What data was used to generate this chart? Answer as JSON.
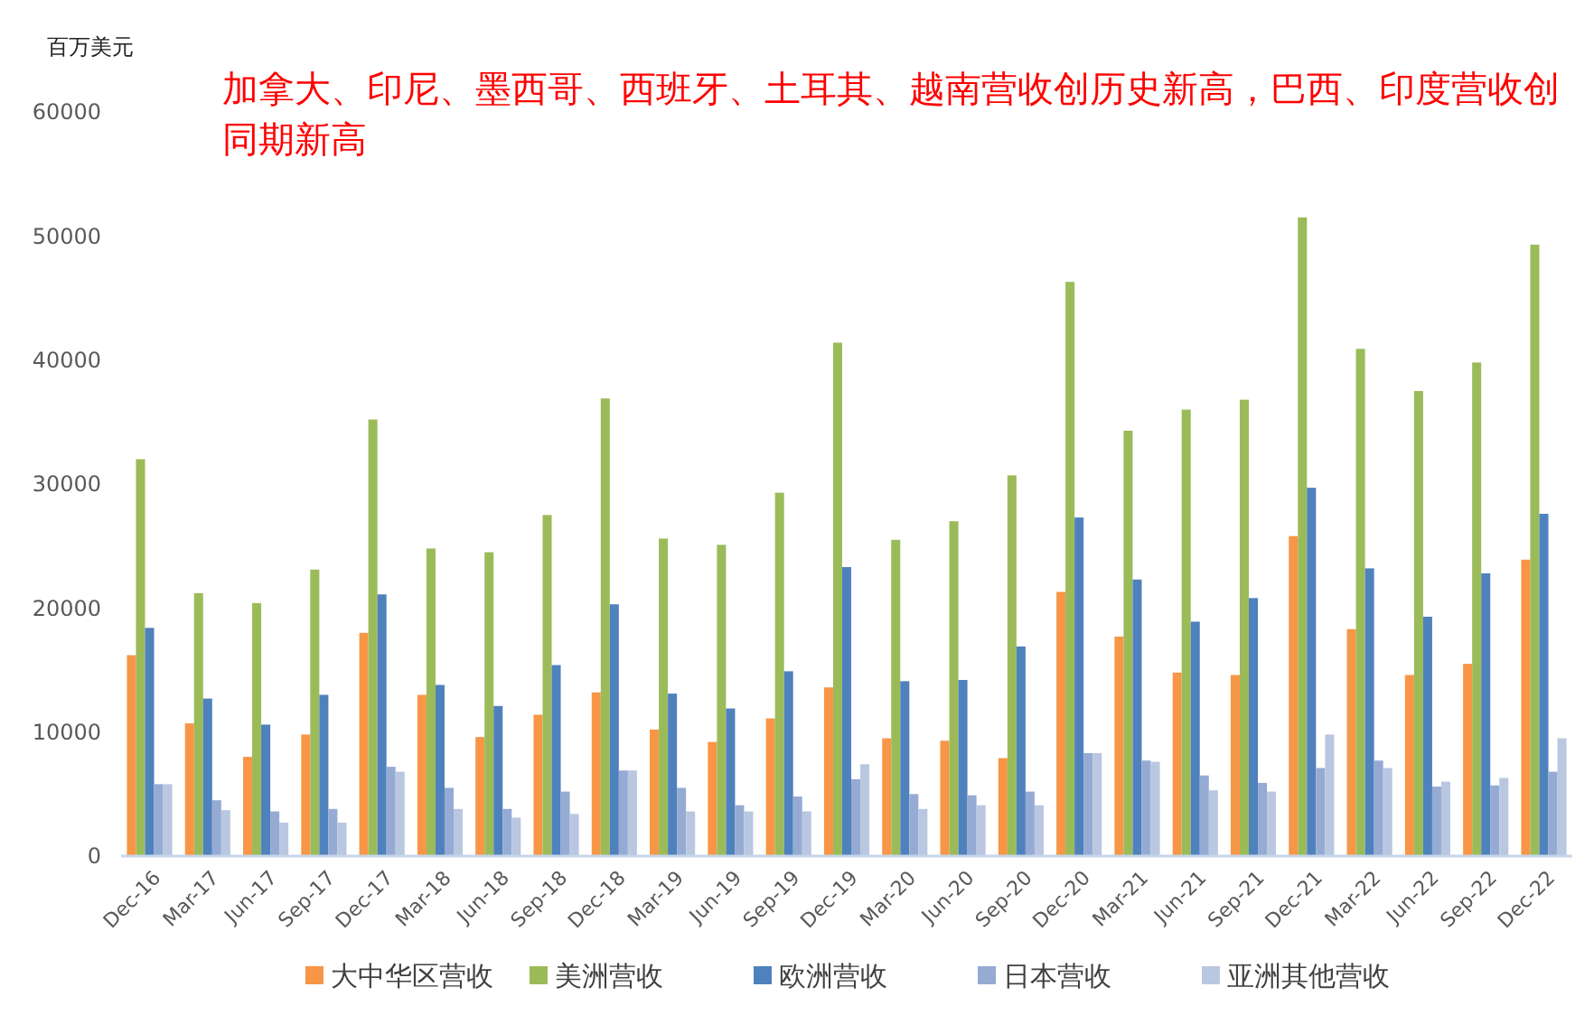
{
  "chart_data": {
    "type": "bar",
    "title": "加拿大、印尼、墨西哥、西班牙、土耳其、越南营收创历史新高，巴西、印度营收创同期新高",
    "ylabel": "百万美元",
    "categories": [
      "Dec-16",
      "Mar-17",
      "Jun-17",
      "Sep-17",
      "Dec-17",
      "Mar-18",
      "Jun-18",
      "Sep-18",
      "Dec-18",
      "Mar-19",
      "Jun-19",
      "Sep-19",
      "Dec-19",
      "Mar-20",
      "Jun-20",
      "Sep-20",
      "Dec-20",
      "Mar-21",
      "Jun-21",
      "Sep-21",
      "Dec-21",
      "Mar-22",
      "Jun-22",
      "Sep-22",
      "Dec-22"
    ],
    "series": [
      {
        "name": "大中华区营收",
        "color": "#f79646",
        "values": [
          16200,
          10700,
          8000,
          9800,
          18000,
          13000,
          9600,
          11400,
          13200,
          10200,
          9200,
          11100,
          13600,
          9500,
          9300,
          7900,
          21300,
          17700,
          14800,
          14600,
          25800,
          18300,
          14600,
          15500,
          23900
        ]
      },
      {
        "name": "美洲营收",
        "color": "#9bbb59",
        "values": [
          32000,
          21200,
          20400,
          23100,
          35200,
          24800,
          24500,
          27500,
          36900,
          25600,
          25100,
          29300,
          41400,
          25500,
          27000,
          30700,
          46300,
          34300,
          36000,
          36800,
          51500,
          40900,
          37500,
          39800,
          49300
        ]
      },
      {
        "name": "欧洲营收",
        "color": "#4f81bd",
        "values": [
          18400,
          12700,
          10600,
          13000,
          21100,
          13800,
          12100,
          15400,
          20300,
          13100,
          11900,
          14900,
          23300,
          14100,
          14200,
          16900,
          27300,
          22300,
          18900,
          20800,
          29700,
          23200,
          19300,
          22800,
          27600
        ]
      },
      {
        "name": "日本营收",
        "color": "#95abd3",
        "values": [
          5800,
          4500,
          3600,
          3800,
          7200,
          5500,
          3800,
          5200,
          6900,
          5500,
          4100,
          4800,
          6200,
          5000,
          4900,
          5200,
          8300,
          7700,
          6500,
          5900,
          7100,
          7700,
          5600,
          5700,
          6800
        ]
      },
      {
        "name": "亚洲其他营收",
        "color": "#b9c7e0",
        "values": [
          5800,
          3700,
          2700,
          2700,
          6800,
          3800,
          3100,
          3400,
          6900,
          3600,
          3600,
          3600,
          7400,
          3800,
          4100,
          4100,
          8300,
          7600,
          5300,
          5200,
          9800,
          7100,
          6000,
          6300,
          9500
        ]
      }
    ],
    "ylim": [
      0,
      60000
    ],
    "yticks": [
      0,
      10000,
      20000,
      30000,
      40000,
      50000,
      60000
    ],
    "grid": false,
    "legend": "bottom"
  }
}
